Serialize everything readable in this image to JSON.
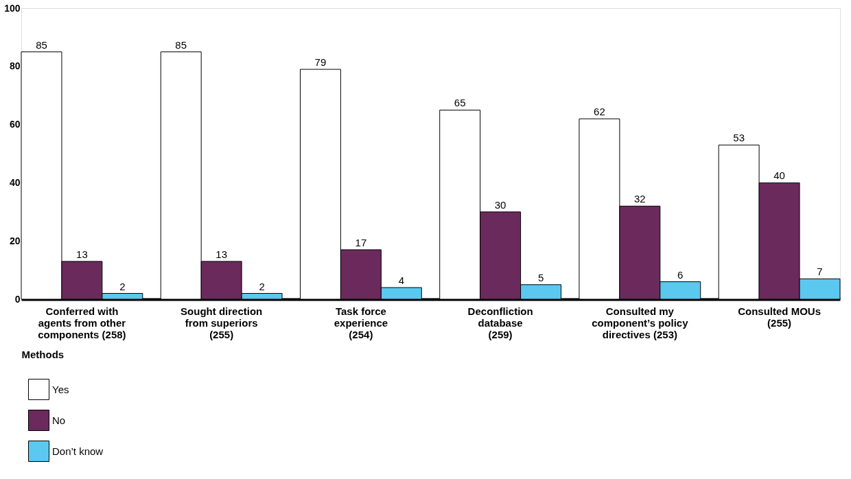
{
  "chart_data": {
    "type": "bar",
    "categories": [
      "Conferred with\nagents from other\ncomponents (258)",
      "Sought direction\nfrom superiors\n(255)",
      "Task force\nexperience\n(254)",
      "Deconfliction\ndatabase\n(259)",
      "Consulted my\ncomponent’s policy\ndirectives (253)",
      "Consulted MOUs\n(255)"
    ],
    "series": [
      {
        "name": "Yes",
        "color": "#ffffff",
        "values": [
          85,
          85,
          79,
          65,
          62,
          53
        ]
      },
      {
        "name": "No",
        "color": "#6b2a5c",
        "values": [
          13,
          13,
          17,
          30,
          32,
          40
        ]
      },
      {
        "name": "Don’t know",
        "color": "#5bc8f0",
        "values": [
          2,
          2,
          4,
          5,
          6,
          7
        ]
      }
    ],
    "xlabel": "Methods",
    "ylim": [
      0,
      100
    ],
    "yticks": [
      0,
      20,
      40,
      60,
      80,
      100
    ],
    "data_labels": true,
    "grid": false,
    "legend": "bottom"
  }
}
